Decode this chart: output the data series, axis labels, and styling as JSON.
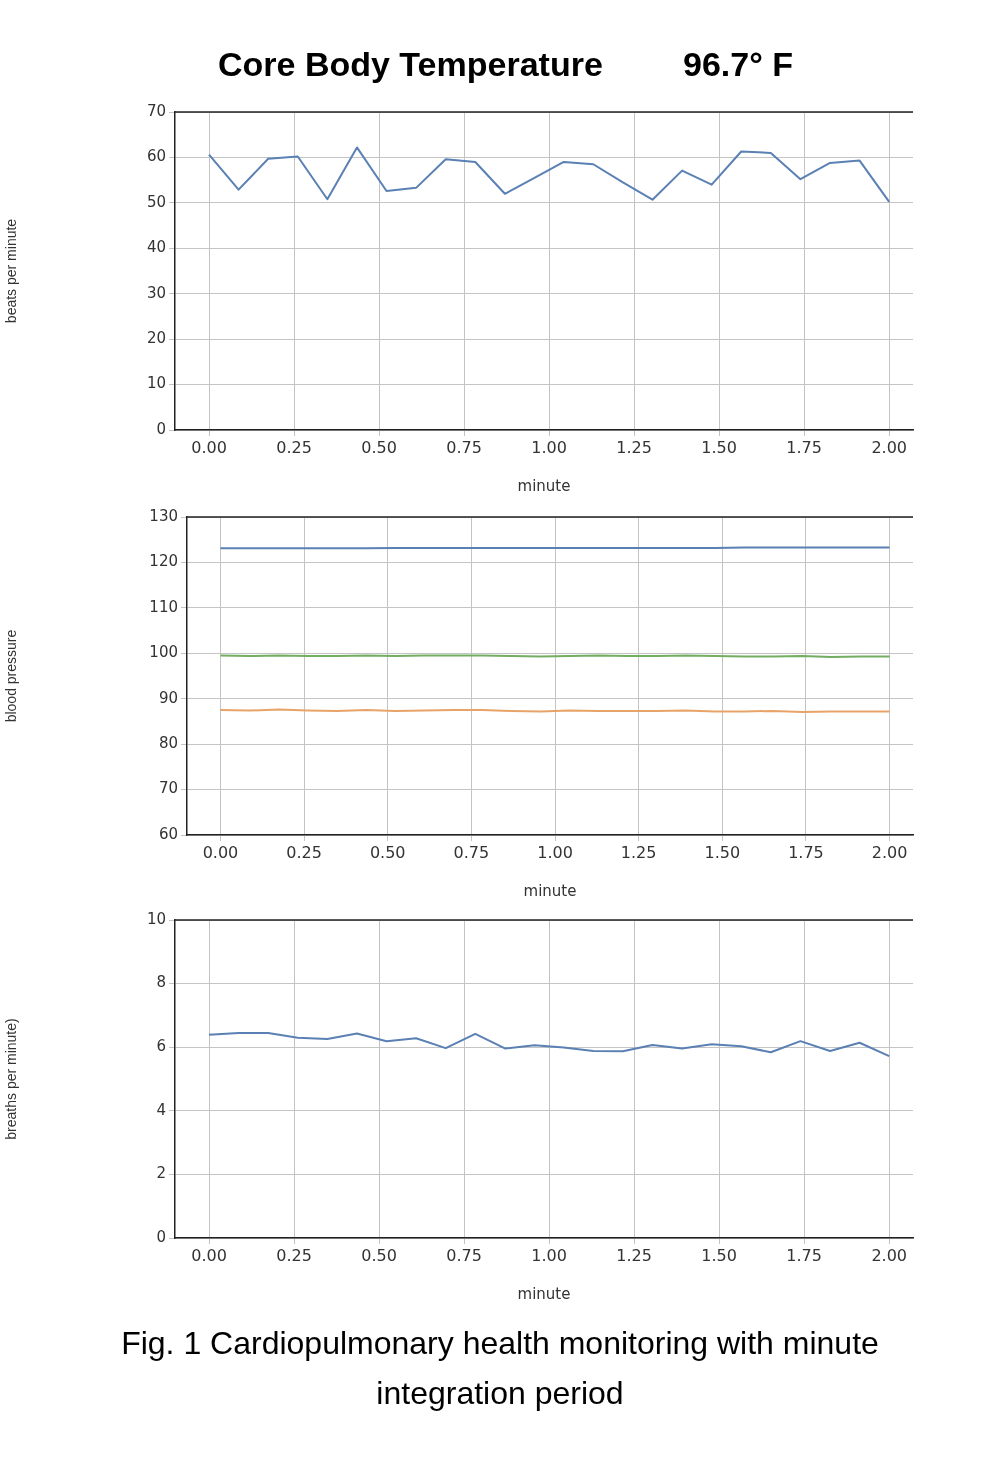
{
  "chart_data": [
    {
      "type": "line",
      "title": "Core Body Temperature",
      "annotations": [
        "96.7° F"
      ],
      "xlabel": "minute",
      "ylabel": "beats per minute",
      "x": [
        0,
        0.087,
        0.174,
        0.261,
        0.348,
        0.435,
        0.522,
        0.609,
        0.696,
        0.783,
        0.87,
        0.957,
        1.043,
        1.13,
        1.217,
        1.304,
        1.391,
        1.478,
        1.565,
        1.652,
        1.739,
        1.826,
        1.913,
        2
      ],
      "series": [
        {
          "color": "#5a80b4",
          "values": [
            60.6,
            52.9,
            59.7,
            60.2,
            50.8,
            62.2,
            52.6,
            53.3,
            59.6,
            59,
            52,
            55.5,
            59,
            58.5,
            54.5,
            50.7,
            57.1,
            54,
            61.3,
            61,
            55.2,
            58.8,
            59.3,
            50.2
          ]
        }
      ],
      "xlim": [
        -0.1,
        2.07
      ],
      "xticks": [
        {
          "value": 0,
          "label": "0.00"
        },
        {
          "value": 0.25,
          "label": "0.25"
        },
        {
          "value": 0.5,
          "label": "0.50"
        },
        {
          "value": 0.75,
          "label": "0.75"
        },
        {
          "value": 1,
          "label": "1.00"
        },
        {
          "value": 1.25,
          "label": "1.25"
        },
        {
          "value": 1.5,
          "label": "1.50"
        },
        {
          "value": 1.75,
          "label": "1.75"
        },
        {
          "value": 2,
          "label": "2.00"
        }
      ],
      "ylim": [
        0,
        70
      ],
      "yticks": [
        0,
        10,
        20,
        30,
        40,
        50,
        60,
        70
      ],
      "grid": true,
      "legend": false
    },
    {
      "type": "line",
      "xlabel": "minute",
      "ylabel": "blood pressure",
      "x": [
        0,
        0.087,
        0.174,
        0.261,
        0.348,
        0.435,
        0.522,
        0.609,
        0.696,
        0.783,
        0.87,
        0.957,
        1.043,
        1.13,
        1.217,
        1.304,
        1.391,
        1.478,
        1.565,
        1.652,
        1.739,
        1.826,
        1.913,
        2
      ],
      "series": [
        {
          "color": "#5a80b4",
          "values": [
            123.1,
            123.1,
            123.1,
            123.1,
            123.1,
            123.1,
            123.2,
            123.2,
            123.2,
            123.2,
            123.2,
            123.2,
            123.2,
            123.2,
            123.2,
            123.2,
            123.2,
            123.2,
            123.3,
            123.3,
            123.3,
            123.3,
            123.3,
            123.3
          ]
        },
        {
          "color": "#e8a468",
          "values": [
            87.5,
            87.4,
            87.6,
            87.4,
            87.3,
            87.5,
            87.3,
            87.4,
            87.5,
            87.5,
            87.3,
            87.2,
            87.4,
            87.3,
            87.3,
            87.3,
            87.4,
            87.2,
            87.2,
            87.3,
            87.1,
            87.2,
            87.2,
            87.2
          ]
        },
        {
          "color": "#72ad62",
          "values": [
            99.5,
            99.4,
            99.5,
            99.4,
            99.4,
            99.5,
            99.4,
            99.5,
            99.5,
            99.5,
            99.4,
            99.3,
            99.4,
            99.5,
            99.4,
            99.4,
            99.5,
            99.4,
            99.3,
            99.3,
            99.4,
            99.2,
            99.3,
            99.3
          ]
        }
      ],
      "xlim": [
        -0.1,
        2.07
      ],
      "xticks": [
        {
          "value": 0,
          "label": "0.00"
        },
        {
          "value": 0.25,
          "label": "0.25"
        },
        {
          "value": 0.5,
          "label": "0.50"
        },
        {
          "value": 0.75,
          "label": "0.75"
        },
        {
          "value": 1,
          "label": "1.00"
        },
        {
          "value": 1.25,
          "label": "1.25"
        },
        {
          "value": 1.5,
          "label": "1.50"
        },
        {
          "value": 1.75,
          "label": "1.75"
        },
        {
          "value": 2,
          "label": "2.00"
        }
      ],
      "ylim": [
        60,
        130
      ],
      "yticks": [
        60,
        70,
        80,
        90,
        100,
        110,
        120,
        130
      ],
      "grid": true,
      "legend": false
    },
    {
      "type": "line",
      "xlabel": "minute",
      "ylabel": "breaths per minute)",
      "annotations": [
        "Fig. 1 Cardiopulmonary health monitoring with minute integration period"
      ],
      "x": [
        0,
        0.087,
        0.174,
        0.261,
        0.348,
        0.435,
        0.522,
        0.609,
        0.696,
        0.783,
        0.87,
        0.957,
        1.043,
        1.13,
        1.217,
        1.304,
        1.391,
        1.478,
        1.565,
        1.652,
        1.739,
        1.826,
        1.913,
        2
      ],
      "series": [
        {
          "color": "#5a80b4",
          "values": [
            6.39,
            6.45,
            6.45,
            6.3,
            6.26,
            6.43,
            6.19,
            6.28,
            5.97,
            6.42,
            5.96,
            6.06,
            5.99,
            5.88,
            5.87,
            6.07,
            5.96,
            6.09,
            6.03,
            5.84,
            6.19,
            5.88,
            6.14,
            5.72
          ]
        }
      ],
      "xlim": [
        -0.1,
        2.07
      ],
      "xticks": [
        {
          "value": 0,
          "label": "0.00"
        },
        {
          "value": 0.25,
          "label": "0.25"
        },
        {
          "value": 0.5,
          "label": "0.50"
        },
        {
          "value": 0.75,
          "label": "0.75"
        },
        {
          "value": 1,
          "label": "1.00"
        },
        {
          "value": 1.25,
          "label": "1.25"
        },
        {
          "value": 1.5,
          "label": "1.50"
        },
        {
          "value": 1.75,
          "label": "1.75"
        },
        {
          "value": 2,
          "label": "2.00"
        }
      ],
      "ylim": [
        0,
        10
      ],
      "yticks": [
        0,
        2,
        4,
        6,
        8,
        10
      ],
      "grid": true,
      "legend": false
    }
  ]
}
